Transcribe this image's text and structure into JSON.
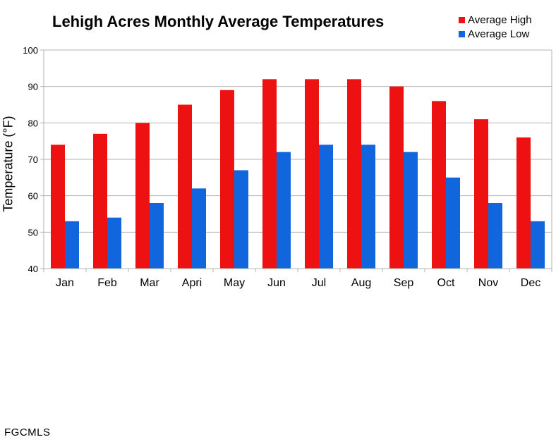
{
  "chart_data": {
    "type": "bar",
    "title": "Lehigh Acres Monthly Average Temperatures",
    "xlabel": "",
    "ylabel": "Temperature (°F)",
    "ylim": [
      40,
      100
    ],
    "yticks": [
      40,
      50,
      60,
      70,
      80,
      90,
      100
    ],
    "grid": true,
    "legend_position": "top-right",
    "categories": [
      "Jan",
      "Feb",
      "Mar",
      "Apri",
      "May",
      "Jun",
      "Jul",
      "Aug",
      "Sep",
      "Oct",
      "Nov",
      "Dec"
    ],
    "series": [
      {
        "name": "Average High",
        "color": "#ee1111",
        "values": [
          74,
          77,
          80,
          85,
          89,
          92,
          92,
          92,
          90,
          86,
          81,
          76
        ]
      },
      {
        "name": "Average Low",
        "color": "#1166dd",
        "values": [
          53,
          54,
          58,
          62,
          67,
          72,
          74,
          74,
          72,
          65,
          58,
          53
        ]
      }
    ]
  },
  "watermark": "FGCMLS"
}
